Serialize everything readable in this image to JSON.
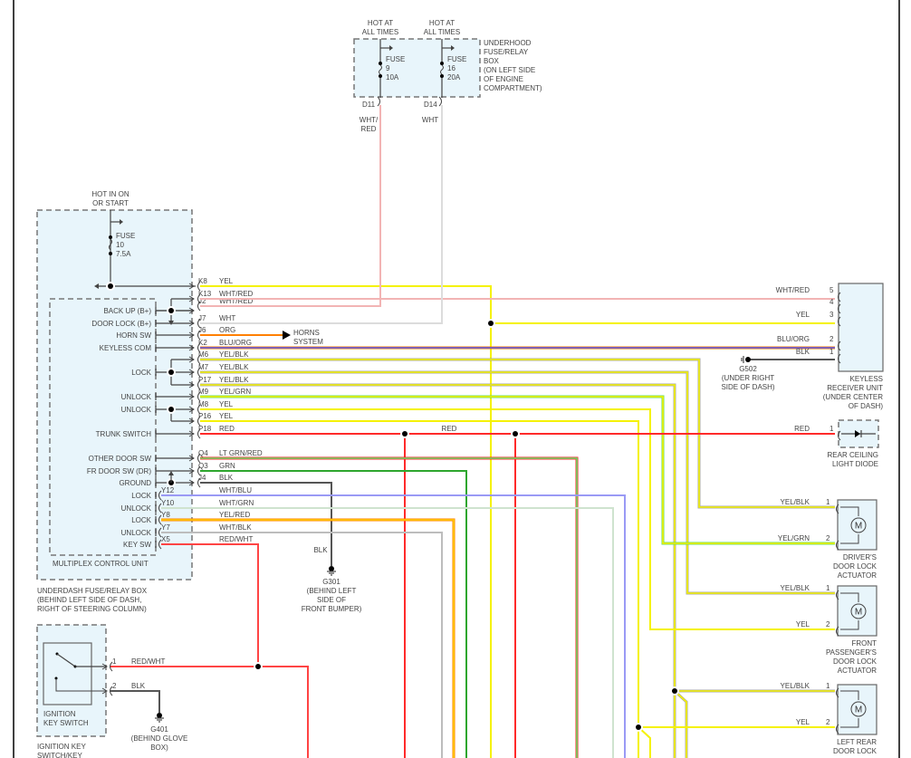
{
  "underhood_box": {
    "hot_labels": [
      "HOT AT",
      "ALL TIMES"
    ],
    "title_lines": [
      "UNDERHOOD",
      "FUSE/RELAY",
      "BOX",
      "(ON LEFT SIDE",
      "OF ENGINE",
      "COMPARTMENT)"
    ],
    "fuses": [
      {
        "label": "FUSE",
        "number": "9",
        "rating": "10A",
        "pin": "D11",
        "wire": [
          "WHT/",
          "RED"
        ]
      },
      {
        "label": "FUSE",
        "number": "16",
        "rating": "20A",
        "pin": "D14",
        "wire": [
          "WHT"
        ]
      }
    ]
  },
  "underdash_box": {
    "hot_labels": [
      "HOT IN ON",
      "OR START"
    ],
    "fuse": {
      "label": "FUSE",
      "number": "10",
      "rating": "7.5A"
    },
    "title_lines": [
      "UNDERDASH FUSE/RELAY BOX",
      "(BEHIND LEFT SIDE OF DASH,",
      "RIGHT OF STEERING COLUMN)"
    ],
    "mcu_title": "MULTIPLEX CONTROL UNIT",
    "terminals": [
      "BACK UP (B+)",
      "DOOR LOCK (B+)",
      "HORN SW",
      "KEYLESS COM",
      "LOCK",
      "UNLOCK",
      "UNLOCK",
      "TRUNK SWITCH",
      "OTHER DOOR SW",
      "FR DOOR SW (DR)",
      "GROUND",
      "LOCK",
      "UNLOCK",
      "LOCK",
      "UNLOCK",
      "KEY SW"
    ],
    "pins": [
      {
        "id": "K8",
        "wire": "YEL"
      },
      {
        "id": "K13",
        "wire": "WHT/RED"
      },
      {
        "id": "J2",
        "wire": "WHT/RED"
      },
      {
        "id": "J7",
        "wire": "WHT"
      },
      {
        "id": "J6",
        "wire": "ORG"
      },
      {
        "id": "K2",
        "wire": "BLU/ORG"
      },
      {
        "id": "M6",
        "wire": "YEL/BLK"
      },
      {
        "id": "M7",
        "wire": "YEL/BLK"
      },
      {
        "id": "P17",
        "wire": "YEL/BLK"
      },
      {
        "id": "M9",
        "wire": "YEL/GRN"
      },
      {
        "id": "M8",
        "wire": "YEL"
      },
      {
        "id": "P16",
        "wire": "YEL"
      },
      {
        "id": "P18",
        "wire": "RED"
      },
      {
        "id": "Q4",
        "wire": "LT GRN/RED"
      },
      {
        "id": "Q3",
        "wire": "GRN"
      },
      {
        "id": "J4",
        "wire": "BLK"
      },
      {
        "id": "Y12",
        "wire": "WHT/BLU"
      },
      {
        "id": "Y10",
        "wire": "WHT/GRN"
      },
      {
        "id": "Y8",
        "wire": "YEL/RED"
      },
      {
        "id": "Y7",
        "wire": "WHT/BLK"
      },
      {
        "id": "X5",
        "wire": "RED/WHT"
      }
    ]
  },
  "horns": [
    "HORNS",
    "SYSTEM"
  ],
  "trunk_red_label": "RED",
  "keyless_receiver": {
    "title_lines": [
      "KEYLESS",
      "RECEIVER UNIT",
      "(UNDER CENTER",
      "OF DASH)"
    ],
    "pins": [
      {
        "num": "5",
        "wire": "WHT/RED"
      },
      {
        "num": "4",
        "wire": ""
      },
      {
        "num": "3",
        "wire": "YEL"
      },
      {
        "num": "2",
        "wire": "BLU/ORG"
      },
      {
        "num": "1",
        "wire": "BLK"
      }
    ]
  },
  "g502": [
    "G502",
    "(UNDER RIGHT",
    "SIDE OF DASH)"
  ],
  "rear_ceiling": {
    "pin": "1",
    "wire": "RED",
    "title_lines": [
      "REAR CEILING",
      "LIGHT DIODE"
    ]
  },
  "actuators": [
    {
      "title_lines": [
        "DRIVER'S",
        "DOOR LOCK",
        "ACTUATOR"
      ],
      "pins": [
        {
          "num": "1",
          "wire": "YEL/BLK"
        },
        {
          "num": "2",
          "wire": "YEL/GRN"
        }
      ],
      "motor": "M"
    },
    {
      "title_lines": [
        "FRONT",
        "PASSENGER'S",
        "DOOR LOCK",
        "ACTUATOR"
      ],
      "pins": [
        {
          "num": "1",
          "wire": "YEL/BLK"
        },
        {
          "num": "2",
          "wire": "YEL"
        }
      ],
      "motor": "M"
    },
    {
      "title_lines": [
        "LEFT REAR",
        "DOOR LOCK"
      ],
      "pins": [
        {
          "num": "1",
          "wire": "YEL/BLK"
        },
        {
          "num": "2",
          "wire": "YEL"
        }
      ],
      "motor": "M"
    }
  ],
  "g301": {
    "wire": "BLK",
    "lines": [
      "G301",
      "(BEHIND LEFT",
      "SIDE OF",
      "FRONT BUMPER)"
    ]
  },
  "ignition": {
    "inner_lines": [
      "IGNITION",
      "KEY SWITCH"
    ],
    "title_lines": [
      "IGNITION KEY",
      "SWITCH/KEY"
    ],
    "pins": [
      {
        "num": "1",
        "wire": "RED/WHT"
      },
      {
        "num": "2",
        "wire": "BLK"
      }
    ]
  },
  "g401": [
    "G401",
    "(BEHIND GLOVE",
    "BOX)"
  ],
  "wire_colors": {
    "YEL": "#f5f200",
    "RED": "#ff2a2a",
    "WHT": "#dcdcdc",
    "WHT_RED": "#f2b4b4",
    "ORG": "#ff8000",
    "BLU": "#5555ee",
    "BLK": "#555555",
    "GRN": "#2ea62e",
    "LT_GRN": "#66dd66",
    "WHT_GRN": "#cfe3cf",
    "WHT_BLU": "#9a9af5",
    "WHT_BLK": "#bdbdbd",
    "stripe_gray": "#aaaaaa",
    "box_fill": "#e8f5fb"
  }
}
